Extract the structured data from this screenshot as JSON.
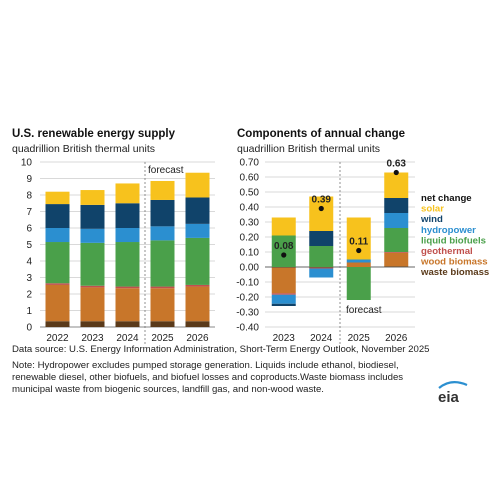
{
  "colors": {
    "solar": "#f7c21d",
    "wind": "#10436a",
    "hydropower": "#2b8fd0",
    "liquid_biofuels": "#4aa04a",
    "geothermal": "#c0504d",
    "wood_biomass": "#c8762a",
    "waste_biomass": "#5a3a1a",
    "grid": "#cccccc",
    "axis_text": "#222222"
  },
  "notes": {
    "source": "Data source: U.S. Energy Information Administration, Short-Term Energy Outlook, November 2025",
    "note": [
      "Note: Hydropower excludes pumped storage generation. Liquids include ethanol, biodiesel,",
      "renewable diesel, other biofuels, and biofuel losses and coproducts.Waste biomass includes",
      "municipal waste from biogenic sources, landfill gas, and non-wood waste."
    ],
    "logo": "eia"
  },
  "chart_data": [
    {
      "type": "bar",
      "stacked": true,
      "title": "U.S. renewable energy supply",
      "subtitle": "quadrillion British thermal units",
      "categories": [
        "2022",
        "2023",
        "2024",
        "2025",
        "2026"
      ],
      "ylim": [
        0,
        10
      ],
      "yticks": [
        0,
        1,
        2,
        3,
        4,
        5,
        6,
        7,
        8,
        9,
        10
      ],
      "grid": true,
      "annotation": "forecast",
      "series": [
        {
          "name": "waste biomass",
          "key": "waste_biomass",
          "values": [
            0.35,
            0.35,
            0.35,
            0.35,
            0.35
          ]
        },
        {
          "name": "wood biomass",
          "key": "wood_biomass",
          "values": [
            2.2,
            2.05,
            2.0,
            2.0,
            2.1
          ]
        },
        {
          "name": "geothermal",
          "key": "geothermal",
          "values": [
            0.1,
            0.1,
            0.1,
            0.1,
            0.1
          ]
        },
        {
          "name": "liquid biofuels",
          "key": "liquid_biofuels",
          "values": [
            2.5,
            2.6,
            2.7,
            2.8,
            2.85
          ]
        },
        {
          "name": "hydropower",
          "key": "hydropower",
          "values": [
            0.85,
            0.85,
            0.85,
            0.85,
            0.85
          ]
        },
        {
          "name": "wind",
          "key": "wind",
          "values": [
            1.45,
            1.45,
            1.5,
            1.6,
            1.6
          ]
        },
        {
          "name": "solar",
          "key": "solar",
          "values": [
            0.75,
            0.9,
            1.2,
            1.15,
            1.5
          ]
        }
      ]
    },
    {
      "type": "bar",
      "stacked": true,
      "title": "Components of annual change",
      "subtitle": "quadrillion British thermal units",
      "categories": [
        "2023",
        "2024",
        "2025",
        "2026"
      ],
      "ylim": [
        -0.4,
        0.7
      ],
      "yticks": [
        -0.4,
        -0.3,
        -0.2,
        -0.1,
        0.0,
        0.1,
        0.2,
        0.3,
        0.4,
        0.5,
        0.6,
        0.7
      ],
      "grid": true,
      "annotation": "forecast",
      "net_change": {
        "name": "net change",
        "values": [
          0.08,
          0.39,
          0.11,
          0.63
        ],
        "labels": [
          "0.08",
          "0.39",
          "0.11",
          "0.63"
        ]
      },
      "series": [
        {
          "name": "waste biomass",
          "key": "waste_biomass",
          "values": [
            -0.005,
            -0.005,
            0.0,
            0.005
          ]
        },
        {
          "name": "wood biomass",
          "key": "wood_biomass",
          "values": [
            -0.17,
            0.0,
            0.03,
            0.09
          ]
        },
        {
          "name": "geothermal",
          "key": "geothermal",
          "values": [
            -0.01,
            -0.005,
            0.0,
            0.005
          ]
        },
        {
          "name": "liquid biofuels",
          "key": "liquid_biofuels",
          "values": [
            0.21,
            0.14,
            -0.22,
            0.16
          ]
        },
        {
          "name": "hydropower",
          "key": "hydropower",
          "values": [
            -0.06,
            -0.06,
            0.02,
            0.1
          ]
        },
        {
          "name": "wind",
          "key": "wind",
          "values": [
            -0.015,
            0.1,
            0.0,
            0.1
          ]
        },
        {
          "name": "solar",
          "key": "solar",
          "values": [
            0.12,
            0.23,
            0.28,
            0.17
          ]
        }
      ],
      "legend": {
        "placement": "right",
        "entries": [
          {
            "label": "net change",
            "key": "net"
          },
          {
            "label": "solar",
            "key": "solar"
          },
          {
            "label": "wind",
            "key": "wind"
          },
          {
            "label": "hydropower",
            "key": "hydropower"
          },
          {
            "label": "liquid biofuels",
            "key": "liquid_biofuels"
          },
          {
            "label": "geothermal",
            "key": "geothermal"
          },
          {
            "label": "wood biomass",
            "key": "wood_biomass"
          },
          {
            "label": "waste biomass",
            "key": "waste_biomass"
          }
        ]
      }
    }
  ]
}
